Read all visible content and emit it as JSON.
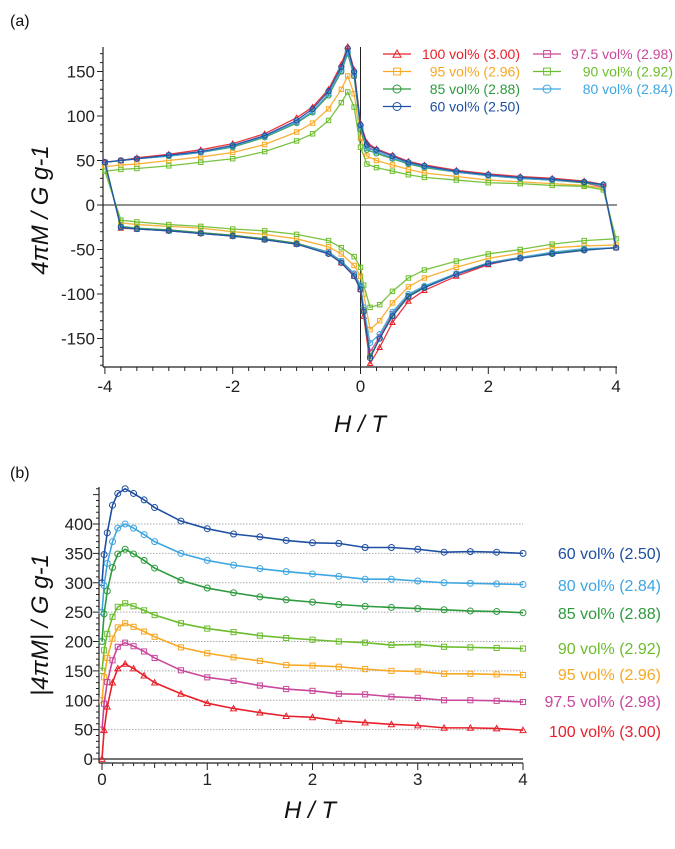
{
  "chart_data": [
    {
      "panel_label": "(a)",
      "type": "line",
      "xlabel": "H / T",
      "ylabel": "4πM / G g-1",
      "xlim": [
        -4.05,
        4.05
      ],
      "ylim": [
        -182,
        178
      ],
      "xticks": [
        "-4",
        "-2",
        "0",
        "2",
        "4"
      ],
      "yticks": [
        "150",
        "100",
        "50",
        "0",
        "-50",
        "-100",
        "-150"
      ],
      "legend": "top-right",
      "grid": false,
      "x": [
        -4,
        -3.75,
        -3.5,
        -3,
        -2.5,
        -2,
        -1.5,
        -1,
        -0.75,
        -0.5,
        -0.3,
        -0.2,
        -0.1,
        0,
        0.1,
        0.25,
        0.5,
        0.75,
        1,
        1.5,
        2,
        2.5,
        3,
        3.5,
        3.8,
        4,
        3.5,
        3,
        2.5,
        2,
        1.5,
        1,
        0.75,
        0.5,
        0.3,
        0.15,
        0.05,
        0,
        -0.1,
        -0.3,
        -0.5,
        -1,
        -1.5,
        -2,
        -2.5,
        -3,
        -3.5,
        -3.75,
        -4
      ],
      "series": [
        {
          "name": "100 vol% (3.00)",
          "color": "#e8202a",
          "marker": "triangle",
          "values": [
            48,
            50,
            53,
            57,
            62,
            69,
            80,
            98,
            110,
            130,
            158,
            178,
            152,
            92,
            70,
            63,
            56,
            49,
            45,
            39,
            35,
            32,
            30,
            27,
            23,
            -48,
            -50,
            -54,
            -59,
            -67,
            -80,
            -96,
            -108,
            -132,
            -160,
            -178,
            -125,
            -95,
            -80,
            -65,
            -54,
            -44,
            -39,
            -35,
            -32,
            -29,
            -27,
            -26,
            48
          ]
        },
        {
          "name": "97.5 vol% (2.98)",
          "color": "#c9479a",
          "marker": "square",
          "values": [
            48,
            50,
            52,
            56,
            60,
            66,
            77,
            93,
            105,
            125,
            150,
            172,
            145,
            88,
            66,
            60,
            53,
            47,
            43,
            37,
            33,
            30,
            28,
            25,
            20,
            -48,
            -50,
            -54,
            -59,
            -65,
            -77,
            -92,
            -102,
            -122,
            -148,
            -165,
            -118,
            -92,
            -78,
            -63,
            -53,
            -43,
            -38,
            -34,
            -31,
            -28,
            -27,
            -25,
            48
          ]
        },
        {
          "name": "95 vol% (2.96)",
          "color": "#f7a823",
          "marker": "square",
          "values": [
            43,
            45,
            46,
            50,
            54,
            59,
            68,
            82,
            92,
            108,
            130,
            145,
            125,
            75,
            55,
            50,
            45,
            40,
            36,
            32,
            28,
            26,
            24,
            22,
            19,
            -45,
            -46,
            -48,
            -54,
            -60,
            -70,
            -82,
            -92,
            -110,
            -130,
            -140,
            -100,
            -80,
            -68,
            -55,
            -47,
            -38,
            -33,
            -30,
            -26,
            -24,
            -22,
            -20,
            43
          ]
        },
        {
          "name": "90 vol% (2.92)",
          "color": "#6cbd2e",
          "marker": "square",
          "values": [
            38,
            40,
            41,
            44,
            48,
            52,
            60,
            72,
            80,
            95,
            115,
            127,
            110,
            65,
            46,
            42,
            38,
            34,
            31,
            28,
            25,
            24,
            22,
            21,
            17,
            -38,
            -40,
            -44,
            -50,
            -55,
            -63,
            -73,
            -82,
            -97,
            -112,
            -115,
            -90,
            -70,
            -58,
            -48,
            -40,
            -33,
            -29,
            -27,
            -24,
            -22,
            -19,
            -17,
            38
          ]
        },
        {
          "name": "85 vol% (2.88)",
          "color": "#2e9a3e",
          "marker": "circle",
          "values": [
            48,
            50,
            52,
            55,
            59,
            65,
            76,
            92,
            104,
            123,
            150,
            170,
            145,
            85,
            62,
            58,
            52,
            46,
            42,
            37,
            33,
            30,
            28,
            25,
            22,
            -48,
            -50,
            -54,
            -59,
            -65,
            -77,
            -92,
            -102,
            -124,
            -150,
            -170,
            -118,
            -92,
            -77,
            -63,
            -53,
            -43,
            -38,
            -34,
            -31,
            -28,
            -26,
            -24,
            48
          ]
        },
        {
          "name": "80 vol% (2.84)",
          "color": "#3ea6e0",
          "marker": "circle",
          "values": [
            48,
            50,
            52,
            55,
            59,
            66,
            77,
            93,
            105,
            125,
            152,
            172,
            148,
            88,
            64,
            60,
            53,
            47,
            43,
            37,
            33,
            30,
            28,
            26,
            22,
            -48,
            -49,
            -53,
            -59,
            -65,
            -77,
            -91,
            -100,
            -120,
            -145,
            -155,
            -115,
            -90,
            -77,
            -63,
            -53,
            -44,
            -39,
            -35,
            -32,
            -29,
            -27,
            -25,
            48
          ]
        },
        {
          "name": "60 vol% (2.50)",
          "color": "#1e4fa0",
          "marker": "circle",
          "values": [
            48,
            50,
            52,
            56,
            60,
            67,
            78,
            95,
            108,
            128,
            155,
            176,
            150,
            90,
            68,
            62,
            55,
            48,
            44,
            38,
            34,
            31,
            29,
            26,
            23,
            -48,
            -51,
            -55,
            -60,
            -66,
            -78,
            -93,
            -103,
            -125,
            -150,
            -172,
            -120,
            -95,
            -80,
            -65,
            -55,
            -44,
            -39,
            -35,
            -32,
            -29,
            -27,
            -25,
            48
          ]
        }
      ]
    },
    {
      "panel_label": "(b)",
      "type": "line",
      "xlabel": "H / T",
      "ylabel": "|4πM| / G g-1",
      "xlim": [
        0,
        4
      ],
      "ylim": [
        0,
        470
      ],
      "xticks": [
        "0",
        "1",
        "2",
        "3",
        "4"
      ],
      "yticks": [
        "400",
        "350",
        "300",
        "250",
        "200",
        "150",
        "100",
        "50",
        "0"
      ],
      "grid": true,
      "legend": "right (labels at line ends)",
      "x": [
        0,
        0.02,
        0.05,
        0.1,
        0.15,
        0.22,
        0.3,
        0.4,
        0.5,
        0.75,
        1,
        1.25,
        1.5,
        1.75,
        2,
        2.25,
        2.5,
        2.75,
        3,
        3.25,
        3.5,
        3.75,
        4
      ],
      "series": [
        {
          "name": "60 vol% (2.50)",
          "color": "#1e4fa0",
          "marker": "circle",
          "values": [
            300,
            348,
            385,
            432,
            452,
            460,
            452,
            441,
            428,
            405,
            392,
            383,
            378,
            372,
            368,
            367,
            360,
            360,
            357,
            352,
            353,
            352,
            350
          ]
        },
        {
          "name": "80 vol% (2.84)",
          "color": "#3ea6e0",
          "marker": "circle",
          "values": [
            250,
            295,
            333,
            370,
            393,
            400,
            393,
            382,
            370,
            350,
            338,
            330,
            324,
            319,
            315,
            311,
            306,
            306,
            303,
            300,
            299,
            298,
            297
          ]
        },
        {
          "name": "85 vol% (2.88)",
          "color": "#2e9a3e",
          "marker": "circle",
          "values": [
            200,
            247,
            286,
            326,
            349,
            357,
            349,
            338,
            325,
            304,
            291,
            283,
            276,
            271,
            267,
            263,
            260,
            258,
            256,
            254,
            252,
            251,
            249
          ]
        },
        {
          "name": "90 vol% (2.92)",
          "color": "#6cbd2e",
          "marker": "square",
          "values": [
            150,
            185,
            213,
            242,
            259,
            265,
            260,
            253,
            245,
            231,
            222,
            216,
            210,
            206,
            203,
            200,
            198,
            194,
            195,
            191,
            190,
            189,
            188
          ]
        },
        {
          "name": "95 vol% (2.96)",
          "color": "#f7a823",
          "marker": "square",
          "values": [
            100,
            139,
            172,
            205,
            224,
            231,
            225,
            217,
            208,
            190,
            180,
            173,
            167,
            160,
            159,
            157,
            153,
            150,
            149,
            145,
            145,
            144,
            143
          ]
        },
        {
          "name": "97.5 vol% (2.98)",
          "color": "#c9479a",
          "marker": "square",
          "values": [
            50,
            94,
            131,
            168,
            191,
            198,
            192,
            183,
            172,
            151,
            139,
            133,
            125,
            119,
            116,
            111,
            110,
            106,
            104,
            100,
            100,
            99,
            97
          ]
        },
        {
          "name": "100 vol% (3.00)",
          "color": "#e8202a",
          "marker": "triangle",
          "values": [
            0,
            49,
            89,
            130,
            154,
            162,
            154,
            142,
            130,
            111,
            95,
            86,
            79,
            73,
            71,
            65,
            62,
            59,
            57,
            53,
            53,
            52,
            49
          ]
        }
      ]
    }
  ]
}
